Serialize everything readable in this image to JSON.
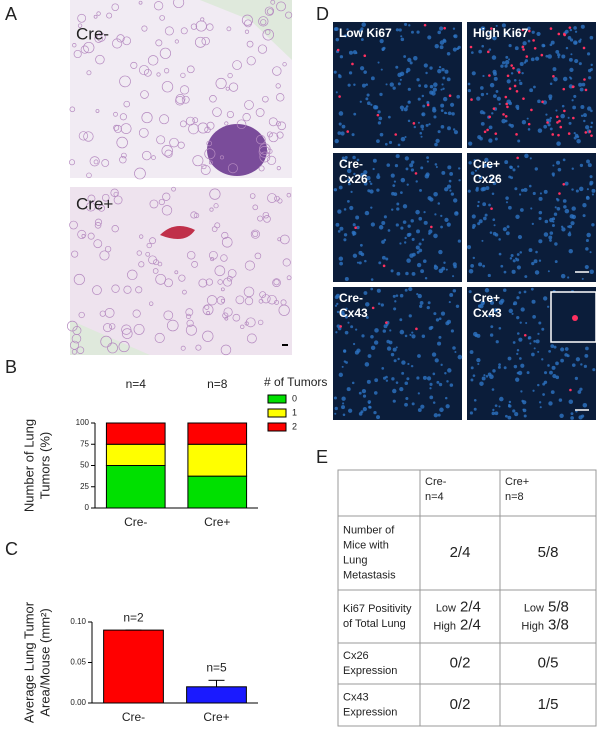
{
  "panel_labels": [
    "A",
    "B",
    "C",
    "D",
    "E"
  ],
  "panel_a": {
    "labels": [
      "Cre-",
      "Cre+"
    ]
  },
  "panel_d": {
    "labels": [
      [
        "Low Ki67"
      ],
      [
        "High Ki67"
      ],
      [
        "Cre-",
        "Cx26"
      ],
      [
        "Cre+",
        "Cx26"
      ],
      [
        "Cre-",
        "Cx43"
      ],
      [
        "Cre+",
        "Cx43"
      ]
    ]
  },
  "chart_data": [
    {
      "type": "stacked-bar",
      "ylabel": [
        "Number of Lung",
        "Tumors (%)"
      ],
      "categories": [
        "Cre-",
        "Cre+"
      ],
      "annotations": [
        "n=4",
        "n=8"
      ],
      "legend_title": "# of Tumors",
      "series": [
        {
          "name": "0",
          "color": "#00e000",
          "values": [
            50,
            37.5
          ]
        },
        {
          "name": "1",
          "color": "#ffff00",
          "values": [
            25,
            37.5
          ]
        },
        {
          "name": "2",
          "color": "#ff0000",
          "values": [
            25,
            25
          ]
        }
      ],
      "ylim": [
        0,
        100
      ],
      "yticks": [
        0,
        25,
        50,
        75,
        100
      ]
    },
    {
      "type": "bar",
      "ylabel": [
        "Average Lung Tumor",
        "Area/Mouse (mm²)"
      ],
      "categories": [
        "Cre-",
        "Cre+"
      ],
      "annotations": [
        "n=2",
        "n=5"
      ],
      "values": [
        0.09,
        0.02
      ],
      "errors": [
        0,
        0.008
      ],
      "colors": [
        "#ff0000",
        "#1a1aff"
      ],
      "ylim": [
        0,
        0.1
      ],
      "yticks": [
        {
          "value": 0,
          "label": "0.00"
        },
        {
          "value": 0.05,
          "label": "0.05"
        },
        {
          "value": 0.1,
          "label": "0.10"
        }
      ]
    }
  ],
  "table": {
    "rows": [
      [
        [],
        [
          "Cre-",
          "n=4"
        ],
        [
          "Cre+",
          "n=8"
        ]
      ],
      [
        [
          "Number of",
          "Mice with",
          "Lung",
          "Metastasis"
        ],
        [
          "2/4"
        ],
        [
          "5/8"
        ]
      ],
      [
        [
          "Ki67 Positivity",
          "of Total Lung"
        ],
        [
          {
            "label": "Low",
            "value": "2/4"
          },
          {
            "label": "High",
            "value": "2/4"
          }
        ],
        [
          {
            "label": "Low",
            "value": "5/8"
          },
          {
            "label": "High",
            "value": "3/8"
          }
        ]
      ],
      [
        [
          "Cx26",
          "Expression"
        ],
        [
          "0/2"
        ],
        [
          "0/5"
        ]
      ],
      [
        [
          "Cx43",
          "Expression"
        ],
        [
          "0/2"
        ],
        [
          "1/5"
        ]
      ]
    ]
  }
}
